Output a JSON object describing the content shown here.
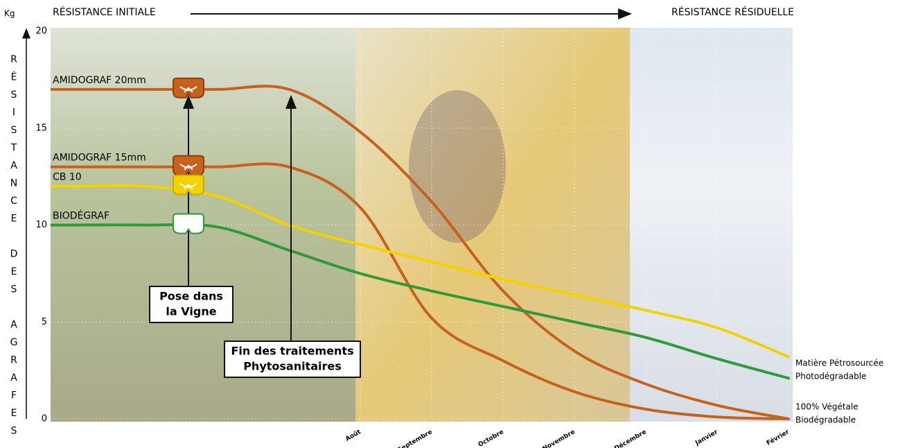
{
  "chart_data": {
    "type": "line",
    "title_left": "RÉSISTANCE INITIALE",
    "title_right": "RÉSISTANCE RÉSIDUELLE",
    "y_unit": "Kg",
    "y_label": "RÉSISTANCE DES AGRAFES",
    "categories": [
      null,
      null,
      null,
      null,
      "Août",
      "Septembre",
      "Octobre",
      "Novembre",
      "Décembre",
      "Janvier",
      "Février"
    ],
    "series": [
      {
        "name": "AMIDOGRAF 20mm",
        "color": "#c6621d",
        "values": [
          17,
          17,
          17,
          17,
          14.8,
          11.2,
          6.6,
          3.5,
          1.8,
          0.7,
          0
        ]
      },
      {
        "name": "AMIDOGRAF 15mm",
        "color": "#c6621d",
        "values": [
          13,
          13,
          13,
          13,
          10.9,
          5.2,
          3.0,
          1.4,
          0.5,
          0.1,
          0
        ]
      },
      {
        "name": "CB 10",
        "color": "#f3d200",
        "values": [
          12,
          12,
          11.5,
          10,
          9,
          8.1,
          7.2,
          6.4,
          5.6,
          4.7,
          3.2
        ]
      },
      {
        "name": "BIODÉGRAF",
        "color": "#2f9a3a",
        "values": [
          10,
          10,
          9.9,
          8.7,
          7.5,
          6.6,
          5.8,
          5.0,
          4.2,
          3.1,
          2.1
        ]
      }
    ],
    "ylim": [
      0,
      20
    ],
    "yticks": [
      0,
      5,
      10,
      15,
      20
    ],
    "grid": true,
    "annotations": [
      {
        "lines": [
          "Pose dans",
          "la Vigne"
        ]
      },
      {
        "lines": [
          "Fin des traitements",
          "Phytosanitaires"
        ]
      },
      {
        "lines": [
          "Matière Pétrosourcée",
          "Photodégradable"
        ]
      },
      {
        "lines": [
          "100% Végétale",
          "Biodégradable"
        ]
      }
    ]
  }
}
